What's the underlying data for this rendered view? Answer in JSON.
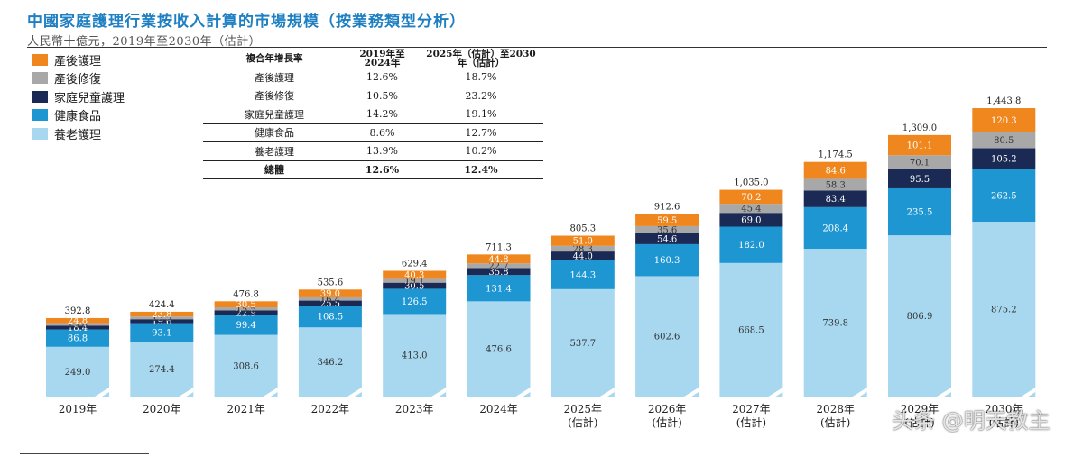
{
  "title": "中國家庭護理行業按收入計算的市場規模（按業務類型分析）",
  "subtitle": "人民幣十億元，2019年至2030年（估計）",
  "colors": {
    "postpartum_care": "#f0871e",
    "postpartum_recovery": "#a8a8a8",
    "child_care": "#1b2a55",
    "health_food": "#1e96d2",
    "elderly_care": "#a7d8ef"
  },
  "legend": [
    {
      "label": "產後護理",
      "color": "#f0871e"
    },
    {
      "label": "產後修復",
      "color": "#a8a8a8"
    },
    {
      "label": "家庭兒童護理",
      "color": "#1b2a55"
    },
    {
      "label": "健康食品",
      "color": "#1e96d2"
    },
    {
      "label": "養老護理",
      "color": "#a7d8ef"
    }
  ],
  "cagr_table": {
    "headers": [
      "複合年增長率",
      "2019年至2024年",
      "2025年（估計）至2030年（估計）"
    ],
    "rows": [
      [
        "產後護理",
        "12.6%",
        "18.7%"
      ],
      [
        "產後修復",
        "10.5%",
        "23.2%"
      ],
      [
        "家庭兒童護理",
        "14.2%",
        "19.1%"
      ],
      [
        "健康食品",
        "8.6%",
        "12.7%"
      ],
      [
        "養老護理",
        "13.9%",
        "10.2%"
      ]
    ],
    "total": [
      "總體",
      "12.6%",
      "12.4%"
    ]
  },
  "watermark": "头条 @明天教主",
  "chart_data": {
    "type": "bar",
    "stacked": true,
    "categories": [
      "2019年",
      "2020年",
      "2021年",
      "2022年",
      "2023年",
      "2024年",
      "2025年(估計)",
      "2026年(估計)",
      "2027年(估計)",
      "2028年(估計)",
      "2029年(估計)",
      "2030年(估計)"
    ],
    "category_lines": [
      [
        "2019年"
      ],
      [
        "2020年"
      ],
      [
        "2021年"
      ],
      [
        "2022年"
      ],
      [
        "2023年"
      ],
      [
        "2024年"
      ],
      [
        "2025年",
        "(估計)"
      ],
      [
        "2026年",
        "(估計)"
      ],
      [
        "2027年",
        "(估計)"
      ],
      [
        "2028年",
        "(估計)"
      ],
      [
        "2029年",
        "(估計)"
      ],
      [
        "2030年",
        "(估計)"
      ]
    ],
    "series": [
      {
        "name": "養老護理",
        "color": "#a7d8ef",
        "values": [
          249.0,
          274.4,
          308.6,
          346.2,
          413.0,
          476.6,
          537.7,
          602.6,
          668.5,
          739.8,
          806.9,
          875.2
        ]
      },
      {
        "name": "健康食品",
        "color": "#1e96d2",
        "values": [
          86.8,
          93.1,
          99.4,
          108.5,
          126.5,
          131.4,
          144.3,
          160.3,
          182.0,
          208.4,
          235.5,
          262.5
        ]
      },
      {
        "name": "家庭兒童護理",
        "color": "#1b2a55",
        "values": [
          18.4,
          19.6,
          22.9,
          25.5,
          30.5,
          35.8,
          44.0,
          54.6,
          69.0,
          83.4,
          95.5,
          105.2
        ]
      },
      {
        "name": "產後修復",
        "color": "#a8a8a8",
        "values": [
          13.8,
          13.5,
          15.5,
          16.4,
          19.1,
          22.7,
          28.3,
          35.6,
          45.4,
          58.3,
          70.1,
          80.5
        ]
      },
      {
        "name": "產後護理",
        "color": "#f0871e",
        "values": [
          24.8,
          23.8,
          30.5,
          39.0,
          40.3,
          44.8,
          51.0,
          59.5,
          70.2,
          84.6,
          101.1,
          120.3
        ]
      }
    ],
    "totals": [
      "392.8",
      "424.4",
      "476.8",
      "535.6",
      "629.4",
      "711.3",
      "805.3",
      "912.6",
      "1,035.0",
      "1,174.5",
      "1,309.0",
      "1,443.8"
    ],
    "ylim": [
      0,
      1443.8
    ],
    "grid": false,
    "legend_position": "top-left"
  }
}
